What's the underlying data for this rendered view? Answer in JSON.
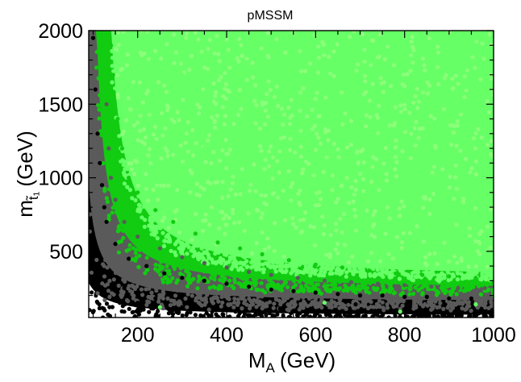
{
  "chart_data": {
    "type": "scatter",
    "title": "pMSSM",
    "xlabel": {
      "main": "M",
      "sub": "A",
      "unit": "(GeV)"
    },
    "ylabel": {
      "main": "m",
      "sub": "t̃₁",
      "unit": "(GeV)"
    },
    "xlim": [
      90,
      1000
    ],
    "ylim": [
      50,
      2000
    ],
    "xticks": [
      200,
      400,
      600,
      800,
      1000
    ],
    "yticks": [
      500,
      1000,
      1500,
      2000
    ],
    "xtick_labels": [
      "200",
      "400",
      "600",
      "800",
      "1000"
    ],
    "ytick_labels": [
      "500",
      "1000",
      "1500",
      "2000"
    ],
    "grid": false,
    "legend": "none",
    "region_colors": {
      "bright_green": "#66ff66",
      "green": "#11cc11",
      "gray": "#5a5a5a",
      "black": "#000000"
    },
    "series": [
      {
        "color": "#000000",
        "description_points": [
          [
            100,
            1950
          ],
          [
            105,
            1600
          ],
          [
            110,
            1300
          ],
          [
            115,
            1100
          ],
          [
            120,
            950
          ],
          [
            125,
            800
          ],
          [
            130,
            700
          ],
          [
            150,
            550
          ],
          [
            180,
            450
          ],
          [
            220,
            400
          ],
          [
            260,
            350
          ],
          [
            300,
            320
          ],
          [
            350,
            300
          ],
          [
            400,
            280
          ],
          [
            450,
            260
          ],
          [
            500,
            240
          ],
          [
            550,
            230
          ],
          [
            600,
            220
          ],
          [
            650,
            210
          ],
          [
            700,
            200
          ],
          [
            750,
            200
          ],
          [
            800,
            190
          ],
          [
            850,
            190
          ],
          [
            900,
            180
          ],
          [
            950,
            180
          ],
          [
            200,
            150
          ],
          [
            300,
            120
          ],
          [
            420,
            90
          ],
          [
            520,
            110
          ],
          [
            690,
            140
          ],
          [
            100,
            480
          ],
          [
            95,
            300
          ],
          [
            110,
            150
          ],
          [
            170,
            250
          ],
          [
            240,
            180
          ]
        ]
      },
      {
        "color": "#5a5a5a",
        "description_points": [
          [
            130,
            1500
          ],
          [
            135,
            1200
          ],
          [
            140,
            1000
          ],
          [
            150,
            850
          ],
          [
            170,
            700
          ],
          [
            200,
            600
          ],
          [
            250,
            520
          ],
          [
            300,
            460
          ],
          [
            350,
            420
          ],
          [
            400,
            390
          ],
          [
            450,
            360
          ],
          [
            500,
            340
          ],
          [
            560,
            320
          ],
          [
            620,
            300
          ],
          [
            680,
            290
          ],
          [
            740,
            280
          ],
          [
            800,
            270
          ],
          [
            860,
            260
          ],
          [
            920,
            250
          ],
          [
            980,
            250
          ]
        ]
      },
      {
        "color": "#11cc11",
        "description_points": [
          [
            140,
            1900
          ],
          [
            145,
            1700
          ],
          [
            155,
            1400
          ],
          [
            165,
            1200
          ],
          [
            180,
            1000
          ],
          [
            200,
            900
          ],
          [
            240,
            780
          ],
          [
            280,
            700
          ],
          [
            330,
            620
          ],
          [
            380,
            560
          ],
          [
            430,
            520
          ],
          [
            480,
            480
          ],
          [
            540,
            440
          ],
          [
            600,
            410
          ],
          [
            660,
            390
          ],
          [
            720,
            370
          ],
          [
            780,
            350
          ],
          [
            840,
            340
          ],
          [
            900,
            330
          ],
          [
            960,
            320
          ]
        ]
      },
      {
        "color": "#66ff66",
        "description_points": [
          [
            200,
            1900
          ],
          [
            300,
            1700
          ],
          [
            400,
            1500
          ],
          [
            500,
            1300
          ],
          [
            600,
            1100
          ],
          [
            700,
            900
          ],
          [
            800,
            700
          ],
          [
            900,
            600
          ],
          [
            990,
            500
          ],
          [
            350,
            1200
          ],
          [
            450,
            1000
          ],
          [
            550,
            900
          ],
          [
            650,
            800
          ],
          [
            750,
            650
          ],
          [
            850,
            500
          ],
          [
            950,
            420
          ],
          [
            620,
            150
          ],
          [
            250,
            120
          ],
          [
            790,
            90
          ],
          [
            960,
            140
          ]
        ]
      }
    ]
  }
}
